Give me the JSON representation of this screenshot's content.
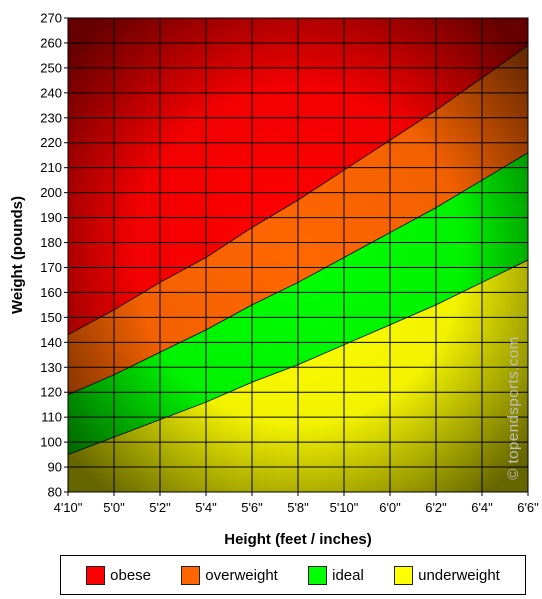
{
  "chart_data": {
    "type": "area",
    "title": "",
    "xlabel": "Height (feet / inches)",
    "ylabel": "Weight (pounds)",
    "x_tick_labels": [
      "4'10\"",
      "5'0\"",
      "5'2\"",
      "5'4\"",
      "5'6\"",
      "5'8\"",
      "5'10\"",
      "6'0\"",
      "6'2\"",
      "6'4\"",
      "6'6\""
    ],
    "x_inches": [
      58,
      60,
      62,
      64,
      66,
      68,
      70,
      72,
      74,
      76,
      78
    ],
    "ylim": [
      80,
      270
    ],
    "y_ticks": [
      80,
      90,
      100,
      110,
      120,
      130,
      140,
      150,
      160,
      170,
      180,
      190,
      200,
      210,
      220,
      230,
      240,
      250,
      260,
      270
    ],
    "grid": true,
    "boundaries": [
      {
        "between": "underweight / ideal",
        "values": [
          95,
          102,
          109,
          116,
          124,
          131,
          139,
          147,
          155,
          164,
          173
        ]
      },
      {
        "between": "ideal / overweight",
        "values": [
          119,
          127,
          136,
          145,
          155,
          164,
          174,
          184,
          194,
          205,
          216
        ]
      },
      {
        "between": "overweight / obese",
        "values": [
          143,
          153,
          164,
          174,
          186,
          197,
          209,
          221,
          233,
          246,
          259
        ]
      }
    ],
    "legend": {
      "placement": "bottom",
      "entries": [
        {
          "name": "obese",
          "color": "#ff0000"
        },
        {
          "name": "overweight",
          "color": "#ff6600"
        },
        {
          "name": "ideal",
          "color": "#00ff00"
        },
        {
          "name": "underweight",
          "color": "#ffff00"
        }
      ]
    }
  },
  "watermark": "© topendsports.com"
}
